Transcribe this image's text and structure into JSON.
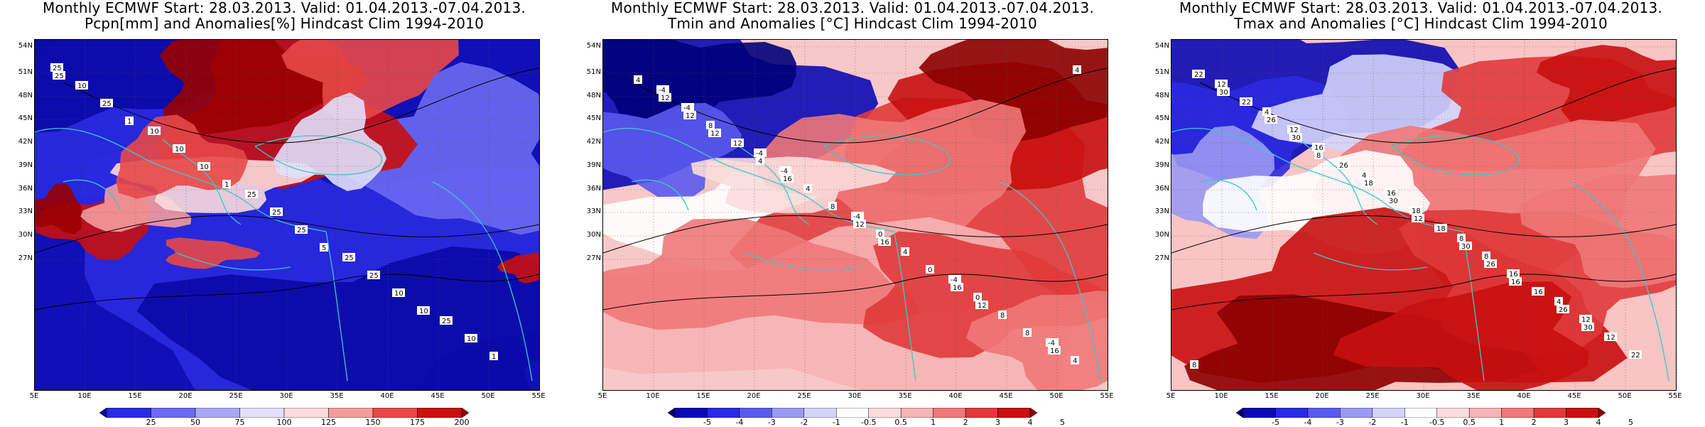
{
  "panels": [
    {
      "id": "pcpn",
      "title_line1": "Monthly ECMWF Start: 28.03.2013. Valid: 01.04.2013.-07.04.2013.",
      "title_line2": "Pcpn[mm] and Anomalies[%] Hindcast Clim 1994-2010",
      "colorbar_labels": [
        "25",
        "50",
        "75",
        "100",
        "125",
        "150",
        "175",
        "200"
      ],
      "colorbar_colors": [
        "#0a0aa6",
        "#2a2ae0",
        "#6a6af2",
        "#a8a8f6",
        "#e0e0fb",
        "#fbdcdc",
        "#f49c9c",
        "#e84848",
        "#c81010",
        "#9a0000"
      ],
      "contour_labels": [
        "25",
        "10",
        "25",
        "25",
        "25",
        "10",
        "10",
        "25",
        "25",
        "10",
        "25",
        "10",
        "25",
        "10",
        "1",
        "1",
        "1",
        "5",
        "10",
        "25"
      ]
    },
    {
      "id": "tmin",
      "title_line1": "Monthly ECMWF Start: 28.03.2013. Valid: 01.04.2013.-07.04.2013.",
      "title_line2": "Tmin and Anomalies [°C] Hindcast Clim 1994-2010",
      "colorbar_labels": [
        "-5",
        "-4",
        "-3",
        "-2",
        "-1",
        "-0.5",
        "0.5",
        "1",
        "2",
        "3",
        "4",
        "5"
      ],
      "colorbar_colors": [
        "#00007a",
        "#0a0ab4",
        "#2a2ae0",
        "#5a5aee",
        "#9a9af4",
        "#d4d4fa",
        "#ffffff",
        "#fbdcdc",
        "#f6b4b4",
        "#f07878",
        "#e03a3a",
        "#c81010",
        "#8c0000"
      ],
      "contour_labels": [
        "-4",
        "-4",
        "-4",
        "-4",
        "-4",
        "-4",
        "-4",
        "0",
        "0",
        "4",
        "8",
        "4",
        "4",
        "8",
        "4",
        "12",
        "8",
        "0",
        "8",
        "12",
        "4",
        "12",
        "16",
        "16",
        "12",
        "16",
        "16",
        "12",
        "4",
        "12"
      ]
    },
    {
      "id": "tmax",
      "title_line1": "Monthly ECMWF Start: 28.03.2013. Valid: 01.04.2013.-07.04.2013.",
      "title_line2": "Tmax and Anomalies [°C] Hindcast Clim 1994-2010",
      "colorbar_labels": [
        "-5",
        "-4",
        "-3",
        "-2",
        "-1",
        "-0.5",
        "0.5",
        "1",
        "2",
        "3",
        "4",
        "5"
      ],
      "colorbar_colors": [
        "#00007a",
        "#0a0ab4",
        "#2a2ae0",
        "#5a5aee",
        "#9a9af4",
        "#d4d4fa",
        "#ffffff",
        "#fbdcdc",
        "#f6b4b4",
        "#f07878",
        "#e03a3a",
        "#c81010",
        "#8c0000"
      ],
      "contour_labels": [
        "4",
        "4",
        "8",
        "4",
        "8",
        "12",
        "16",
        "8",
        "12",
        "12",
        "16",
        "18",
        "16",
        "12",
        "22",
        "26",
        "18",
        "16",
        "22",
        "26",
        "18",
        "30",
        "26",
        "22",
        "30",
        "30",
        "26",
        "30",
        "30",
        "8",
        "12",
        "16"
      ]
    }
  ],
  "axes": {
    "lat_ticks": [
      "54N",
      "51N",
      "48N",
      "45N",
      "42N",
      "39N",
      "36N",
      "33N",
      "30N",
      "27N"
    ],
    "lon_ticks": [
      "5E",
      "10E",
      "15E",
      "20E",
      "25E",
      "30E",
      "35E",
      "40E",
      "45E",
      "50E",
      "55E"
    ]
  },
  "colors": {
    "coastline": "#3cc8c8",
    "contour": "#000000",
    "grid": "#555555"
  }
}
